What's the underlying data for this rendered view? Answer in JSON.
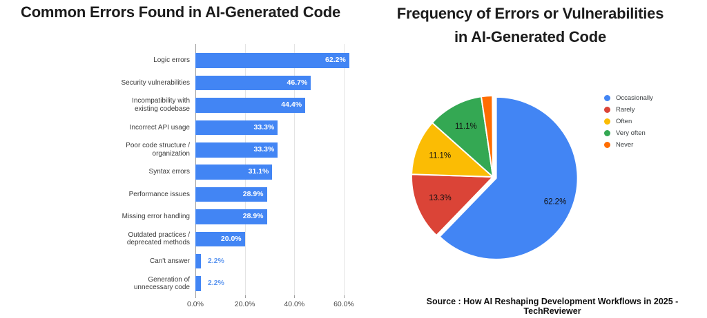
{
  "header": {
    "left_title": "Common Errors Found in AI-Generated Code",
    "right_title_line1": "Frequency of Errors or Vulnerabilities",
    "right_title_line2": "in AI-Generated Code"
  },
  "source_caption": "Source : How AI Reshaping Development Workflows in 2025 - TechReviewer",
  "colors": {
    "bar_blue": "#4285F4",
    "outside_value_label": "#5e97f0",
    "pie_blue": "#4285F4",
    "pie_red": "#DB4437",
    "pie_yellow": "#FBBC04",
    "pie_green": "#34A853",
    "pie_orange": "#FF6D01"
  },
  "chart_data": [
    {
      "type": "bar",
      "orientation": "horizontal",
      "title": "Common Errors Found in AI-Generated Code",
      "categories": [
        "Logic errors",
        "Security vulnerabilities",
        "Incompatibility with\nexisting codebase",
        "Incorrect API usage",
        "Poor code structure /\norganization",
        "Syntax errors",
        "Performance issues",
        "Missing error handling",
        "Outdated practices /\ndeprecated methods",
        "Can't answer",
        "Generation of\nunnecessary code"
      ],
      "values": [
        62.2,
        46.7,
        44.4,
        33.3,
        33.3,
        31.1,
        28.9,
        28.9,
        20.0,
        2.2,
        2.2
      ],
      "data_labels": [
        "62.2%",
        "46.7%",
        "44.4%",
        "33.3%",
        "33.3%",
        "31.1%",
        "28.9%",
        "28.9%",
        "20.0%",
        "2.2%",
        "2.2%"
      ],
      "x_ticks": [
        {
          "value": 0,
          "label": "0.0%"
        },
        {
          "value": 20,
          "label": "20.0%"
        },
        {
          "value": 40,
          "label": "40.0%"
        },
        {
          "value": 60,
          "label": "60.0%"
        }
      ],
      "xlim": [
        0,
        64.2
      ],
      "xlabel": "",
      "ylabel": "",
      "grid": true,
      "bar_color": "#4285F4"
    },
    {
      "type": "pie",
      "title": "Frequency of Errors or Vulnerabilities in AI-Generated Code",
      "labels": [
        "Occasionally",
        "Rarely",
        "Often",
        "Very often",
        "Never"
      ],
      "values": [
        62.2,
        13.3,
        11.1,
        11.1,
        2.2
      ],
      "slice_labels": [
        "62.2%",
        "13.3%",
        "11.1%",
        "11.1%",
        ""
      ],
      "colors": [
        "#4285F4",
        "#DB4437",
        "#FBBC04",
        "#34A853",
        "#FF6D01"
      ],
      "start_angle_deg": 0,
      "clockwise": true,
      "exploded_slice": "Occasionally",
      "legend_position": "right"
    }
  ]
}
